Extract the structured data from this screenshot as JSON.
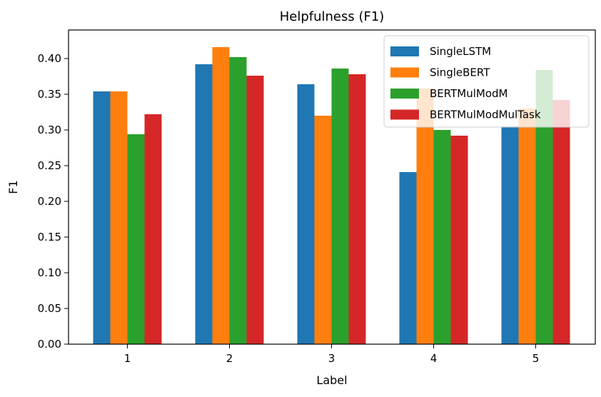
{
  "chart_data": {
    "type": "bar",
    "title": "Helpfulness (F1)",
    "xlabel": "Label",
    "ylabel": "F1",
    "categories": [
      "1",
      "2",
      "3",
      "4",
      "5"
    ],
    "ylim": [
      0,
      0.44
    ],
    "yticks": [
      "0.00",
      "0.05",
      "0.10",
      "0.15",
      "0.20",
      "0.25",
      "0.30",
      "0.35",
      "0.40"
    ],
    "grid": false,
    "legend_position": "top-right",
    "series": [
      {
        "name": "SingleLSTM",
        "color": "#1f77b4",
        "values": [
          0.354,
          0.392,
          0.364,
          0.241,
          0.305
        ]
      },
      {
        "name": "SingleBERT",
        "color": "#ff7f0e",
        "values": [
          0.354,
          0.416,
          0.32,
          0.358,
          0.33
        ]
      },
      {
        "name": "BERTMulModM",
        "color": "#2ca02c",
        "values": [
          0.294,
          0.402,
          0.386,
          0.3,
          0.384
        ]
      },
      {
        "name": "BERTMulModMulTask",
        "color": "#d62728",
        "values": [
          0.322,
          0.376,
          0.378,
          0.292,
          0.342
        ]
      }
    ]
  }
}
